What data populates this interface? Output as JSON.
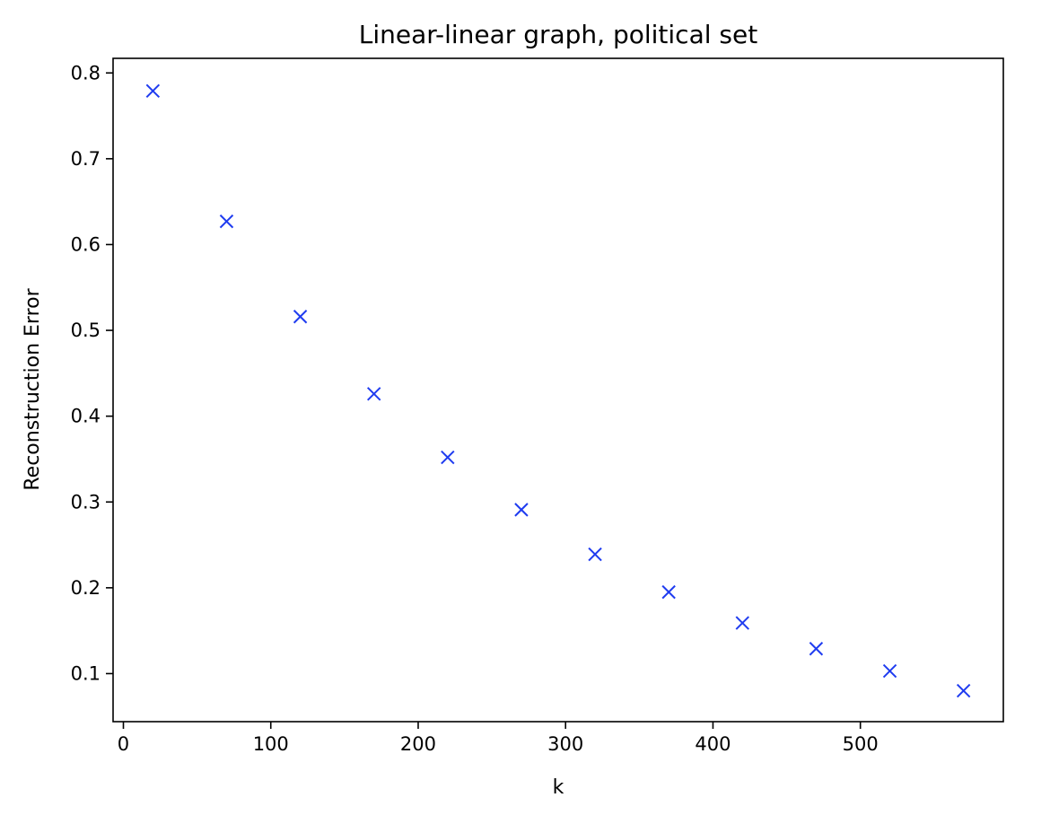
{
  "chart_data": {
    "type": "scatter",
    "title": "Linear-linear graph, political set",
    "xlabel": "k",
    "ylabel": "Reconstruction Error",
    "xlim": [
      -7,
      597
    ],
    "ylim": [
      0.044,
      0.817
    ],
    "xticks": [
      0,
      100,
      200,
      300,
      400,
      500
    ],
    "yticks": [
      0.1,
      0.2,
      0.3,
      0.4,
      0.5,
      0.6,
      0.7,
      0.8
    ],
    "grid": false,
    "marker": "x",
    "color": "#1f3cf0",
    "series": [
      {
        "x": [
          20,
          70,
          120,
          170,
          220,
          270,
          320,
          370,
          420,
          470,
          520,
          570
        ],
        "y": [
          0.779,
          0.627,
          0.516,
          0.426,
          0.352,
          0.291,
          0.239,
          0.195,
          0.159,
          0.129,
          0.103,
          0.08
        ]
      }
    ]
  }
}
